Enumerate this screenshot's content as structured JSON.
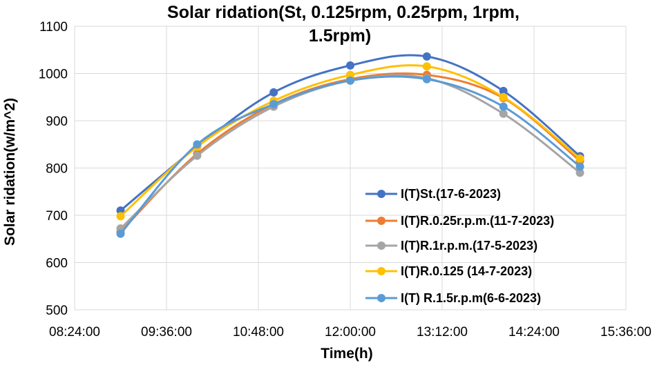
{
  "chart_data": {
    "type": "line",
    "title_lines": [
      "Solar ridation(St, 0.125rpm, 0.25rpm, 1rpm,",
      "1.5rpm)"
    ],
    "xlabel": "Time(h)",
    "ylabel": "Solar ridation(w/m^2)",
    "x_ticks": [
      "08:24:00",
      "09:36:00",
      "10:48:00",
      "12:00:00",
      "13:12:00",
      "14:24:00",
      "15:36:00"
    ],
    "x_tick_minutes": [
      504,
      576,
      648,
      720,
      792,
      864,
      936
    ],
    "xlim_minutes": [
      504,
      936
    ],
    "y_ticks": [
      "500",
      "600",
      "700",
      "800",
      "900",
      "1000",
      "1100"
    ],
    "ylim": [
      500,
      1100
    ],
    "x_minutes": [
      540,
      600,
      660,
      720,
      780,
      840,
      900
    ],
    "series": [
      {
        "name": "I(T)St.(17-6-2023)",
        "color": "#4472C4",
        "values": [
          710,
          845,
          960,
          1017,
          1036,
          963,
          825
        ]
      },
      {
        "name": "I(T)R.0.25r.p.m.(11-7-2023)",
        "color": "#ED7D31",
        "values": [
          665,
          830,
          935,
          988,
          997,
          948,
          815
        ]
      },
      {
        "name": "I(T)R.1r.p.m.(17-5-2023)",
        "color": "#A5A5A5",
        "values": [
          672,
          826,
          930,
          985,
          990,
          915,
          790
        ]
      },
      {
        "name": "I(T)R.0.125 (14-7-2023)",
        "color": "#FFC000",
        "values": [
          698,
          845,
          942,
          997,
          1015,
          950,
          820
        ]
      },
      {
        "name": "I(T) R.1.5r.p.m(6-6-2023)",
        "color": "#5B9BD5",
        "values": [
          661,
          850,
          935,
          985,
          988,
          930,
          803
        ]
      }
    ]
  }
}
